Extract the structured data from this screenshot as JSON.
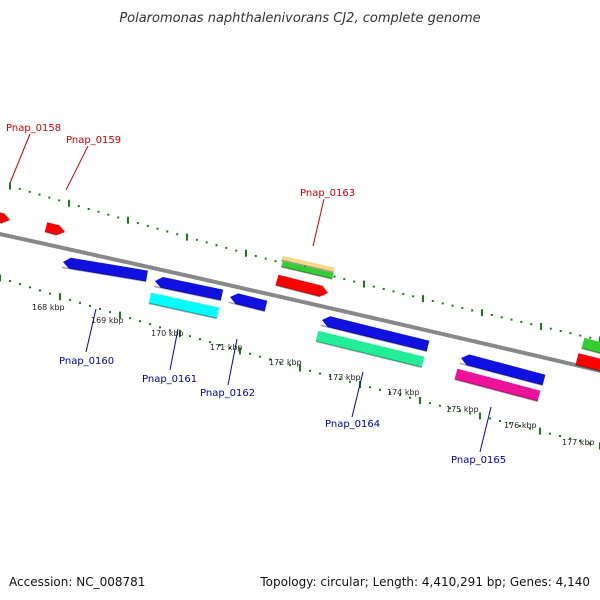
{
  "title": "Polaromonas naphthalenivorans CJ2, complete genome",
  "footer": {
    "accession": "Accession: NC_008781",
    "topology": "Topology: circular; Length: 4,410,291 bp; Genes: 4,140"
  },
  "colors": {
    "forward_label": "#cc0000",
    "reverse_label": "#0000aa",
    "tick": "#1a7a1a",
    "backbone": "#888888"
  },
  "kbp_labels": [
    "168 kbp",
    "169 kbp",
    "170 kbp",
    "171 kbp",
    "172 kbp",
    "173 kbp",
    "174 kbp",
    "175 kbp",
    "176 kbp",
    "177 kbp"
  ],
  "gene_labels": {
    "forward": [
      "Pnap_0158",
      "Pnap_0159",
      "Pnap_0163"
    ],
    "reverse": [
      "Pnap_0160",
      "Pnap_0161",
      "Pnap_0162",
      "Pnap_0164",
      "Pnap_0165"
    ]
  },
  "feature_colors": {
    "red": "#ff0000",
    "blue": "#1010e0",
    "cyan": "#00ffff",
    "green": "#33cc33",
    "tan": "#f2d98c",
    "mint": "#22ee99",
    "pink": "#ee1199"
  }
}
